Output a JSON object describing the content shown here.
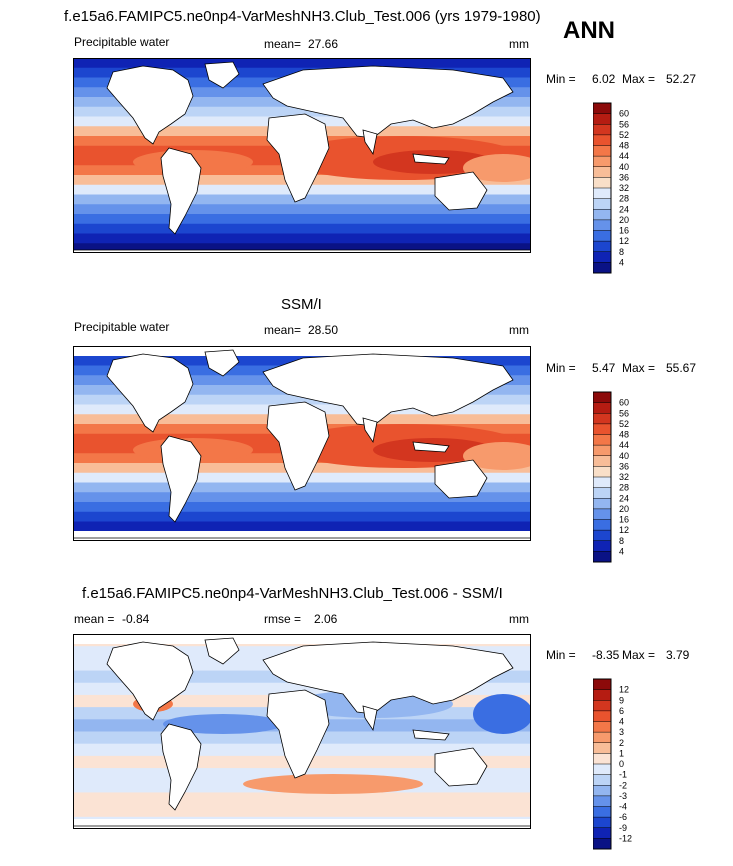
{
  "header": {
    "title": "f.e15a6.FAMIPC5.ne0np4-VarMeshNH3.Club_Test.006 (yrs 1979-1980)",
    "season": "ANN"
  },
  "panels": [
    {
      "id": "model",
      "section_title": "",
      "variable": "Precipitable water",
      "stat_label": "mean=",
      "stat_value": "27.66",
      "stat2_label": "",
      "stat2_value": "",
      "units": "mm",
      "min_label": "Min =",
      "min_value": "6.02",
      "max_label": "Max =",
      "max_value": "52.27",
      "levels": [
        "60",
        "56",
        "52",
        "48",
        "44",
        "40",
        "36",
        "32",
        "28",
        "24",
        "20",
        "16",
        "12",
        "8",
        "4"
      ],
      "colors": [
        "#8c0a0a",
        "#b51c12",
        "#d3361f",
        "#e9532e",
        "#f37748",
        "#f79a6c",
        "#f8bd98",
        "#f9dfc8",
        "#dfeafb",
        "#bcd4f6",
        "#93b6f0",
        "#6592ea",
        "#3a6ee2",
        "#1c46cf",
        "#0f23b4",
        "#0a1285"
      ],
      "missing_color": ""
    },
    {
      "id": "obs",
      "section_title": "SSM/I",
      "variable": "Precipitable water",
      "stat_label": "mean=",
      "stat_value": "28.50",
      "stat2_label": "",
      "stat2_value": "",
      "units": "mm",
      "min_label": "Min =",
      "min_value": "5.47",
      "max_label": "Max =",
      "max_value": "55.67",
      "levels": [
        "60",
        "56",
        "52",
        "48",
        "44",
        "40",
        "36",
        "32",
        "28",
        "24",
        "20",
        "16",
        "12",
        "8",
        "4"
      ],
      "colors": [
        "#8c0a0a",
        "#b51c12",
        "#d3361f",
        "#e9532e",
        "#f37748",
        "#f79a6c",
        "#f8bd98",
        "#f9dfc8",
        "#dfeafb",
        "#bcd4f6",
        "#93b6f0",
        "#6592ea",
        "#3a6ee2",
        "#1c46cf",
        "#0f23b4",
        "#0a1285"
      ],
      "missing_color": "#ffffff"
    },
    {
      "id": "diff",
      "section_title": "f.e15a6.FAMIPC5.ne0np4-VarMeshNH3.Club_Test.006 - SSM/I",
      "variable": "",
      "stat_label": "mean =",
      "stat_value": "-0.84",
      "stat2_label": "rmse =",
      "stat2_value": "2.06",
      "units": "mm",
      "min_label": "Min =",
      "min_value": "-8.35",
      "max_label": "Max =",
      "max_value": "3.79",
      "levels": [
        "12",
        "9",
        "6",
        "4",
        "3",
        "2",
        "1",
        "0",
        "-1",
        "-2",
        "-3",
        "-4",
        "-6",
        "-9",
        "-12"
      ],
      "colors": [
        "#8c0a0a",
        "#b51c12",
        "#d3361f",
        "#e9532e",
        "#f37748",
        "#f79a6c",
        "#f8bd98",
        "#fbe3d4",
        "#dfeafb",
        "#bcd4f6",
        "#93b6f0",
        "#6592ea",
        "#3a6ee2",
        "#1c46cf",
        "#0f23b4",
        "#0a1285"
      ],
      "missing_color": "#ffffff"
    }
  ]
}
